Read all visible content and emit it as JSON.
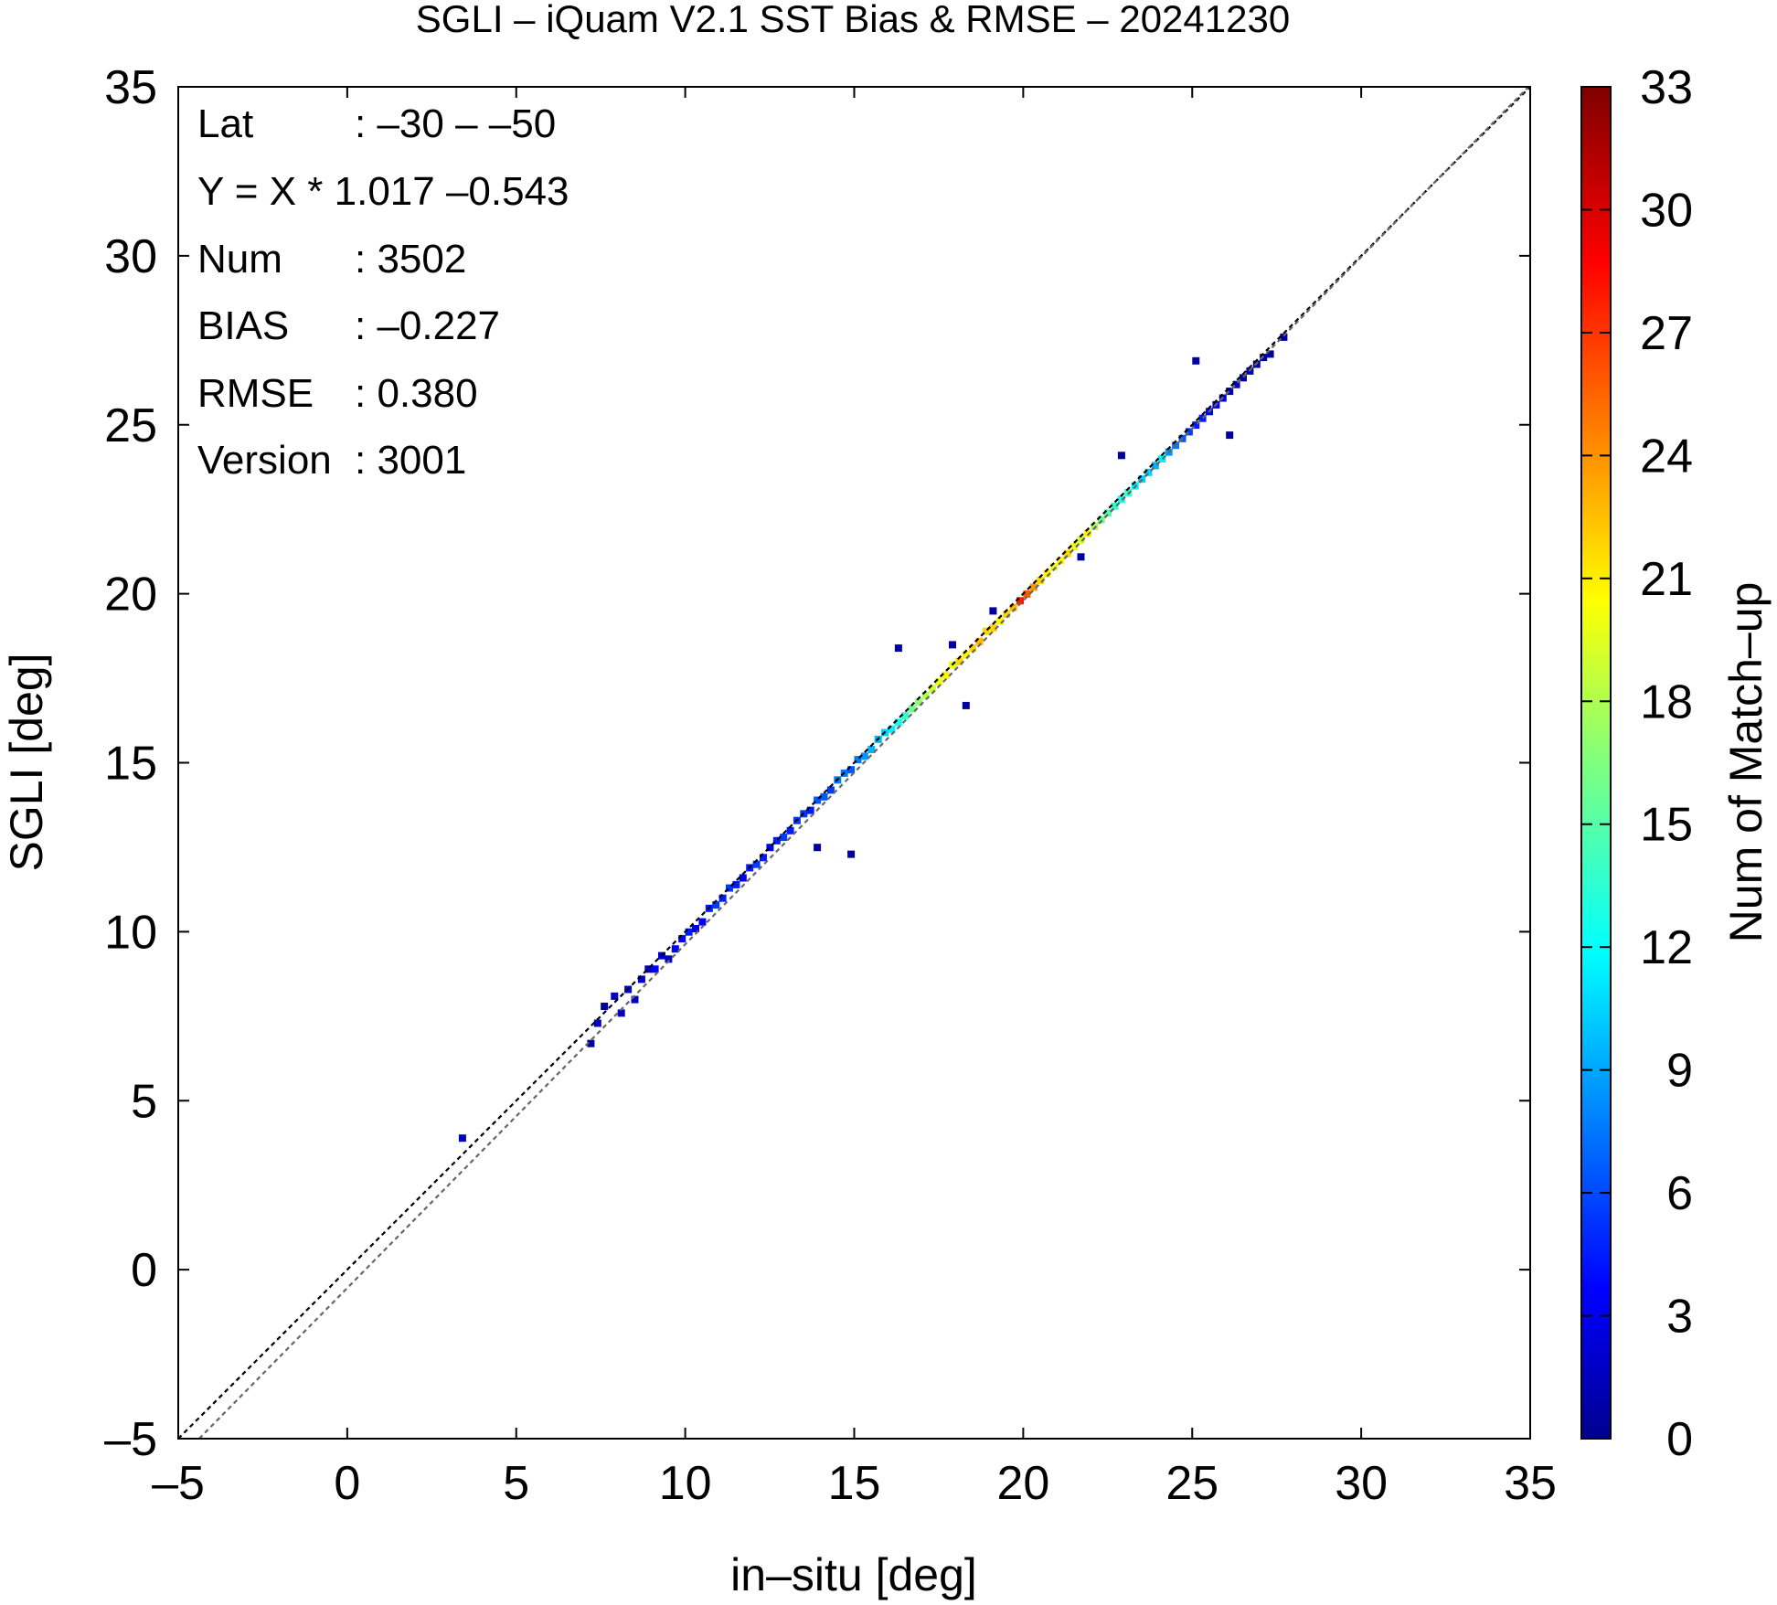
{
  "chart_data": {
    "type": "heatmap",
    "title": "SGLI – iQuam V2.1 SST Bias & RMSE  – 20241230",
    "xlabel": "in–situ [deg]",
    "ylabel": "SGLI [deg]",
    "xlim": [
      -5,
      35
    ],
    "ylim": [
      -5,
      35
    ],
    "x_ticks": [
      "–5",
      "0",
      "5",
      "10",
      "15",
      "20",
      "25",
      "30",
      "35"
    ],
    "y_ticks": [
      "–5",
      "0",
      "5",
      "10",
      "15",
      "20",
      "25",
      "30",
      "35"
    ],
    "colorbar": {
      "label": "Num of Match–up",
      "range": [
        0,
        33
      ],
      "ticks": [
        "0",
        "3",
        "6",
        "9",
        "12",
        "15",
        "18",
        "21",
        "24",
        "27",
        "30",
        "33"
      ]
    },
    "grid": false,
    "annotations": [
      {
        "key": "Lat",
        "value": ": –30 – –50"
      },
      {
        "key": "Y = X * 1.017 –0.543",
        "value": ""
      },
      {
        "key": "Num",
        "value": ": 3502"
      },
      {
        "key": "BIAS",
        "value": ": –0.227"
      },
      {
        "key": "RMSE",
        "value": ": 0.380"
      },
      {
        "key": "Version",
        "value": ": 3001"
      }
    ],
    "reference_lines": [
      {
        "name": "1:1",
        "slope": 1,
        "intercept": 0
      },
      {
        "name": "fit",
        "slope": 1.017,
        "intercept": -0.543
      }
    ],
    "bin_size": 0.2,
    "cells": [
      [
        3.4,
        3.9,
        2
      ],
      [
        7.2,
        6.7,
        1
      ],
      [
        7.4,
        7.3,
        2
      ],
      [
        7.6,
        7.8,
        1
      ],
      [
        7.9,
        8.1,
        2
      ],
      [
        8.1,
        7.6,
        2
      ],
      [
        8.3,
        8.3,
        3
      ],
      [
        8.5,
        8.0,
        2
      ],
      [
        8.7,
        8.6,
        3
      ],
      [
        8.9,
        8.9,
        2
      ],
      [
        9.1,
        8.9,
        4
      ],
      [
        9.3,
        9.3,
        3
      ],
      [
        9.5,
        9.2,
        2
      ],
      [
        9.7,
        9.5,
        4
      ],
      [
        9.9,
        9.8,
        4
      ],
      [
        10.1,
        10.0,
        5
      ],
      [
        10.3,
        10.1,
        3
      ],
      [
        10.5,
        10.3,
        4
      ],
      [
        10.7,
        10.7,
        5
      ],
      [
        10.9,
        10.8,
        6
      ],
      [
        11.1,
        11.0,
        5
      ],
      [
        11.3,
        11.3,
        6
      ],
      [
        11.5,
        11.4,
        5
      ],
      [
        11.7,
        11.6,
        4
      ],
      [
        11.9,
        11.9,
        5
      ],
      [
        12.1,
        12.0,
        6
      ],
      [
        12.3,
        12.2,
        5
      ],
      [
        12.5,
        12.5,
        4
      ],
      [
        12.7,
        12.7,
        5
      ],
      [
        12.9,
        12.8,
        6
      ],
      [
        13.1,
        13.0,
        5
      ],
      [
        13.3,
        13.3,
        6
      ],
      [
        13.5,
        13.5,
        6
      ],
      [
        13.7,
        13.6,
        5
      ],
      [
        13.9,
        13.9,
        7
      ],
      [
        14.1,
        14.0,
        7
      ],
      [
        14.3,
        14.2,
        6
      ],
      [
        14.5,
        14.5,
        8
      ],
      [
        14.7,
        14.7,
        8
      ],
      [
        14.9,
        14.8,
        7
      ],
      [
        15.1,
        15.1,
        8
      ],
      [
        15.3,
        15.2,
        9
      ],
      [
        15.5,
        15.4,
        10
      ],
      [
        15.7,
        15.7,
        10
      ],
      [
        15.9,
        15.9,
        11
      ],
      [
        16.1,
        16.0,
        12
      ],
      [
        16.3,
        16.2,
        13
      ],
      [
        16.5,
        16.4,
        14
      ],
      [
        16.7,
        16.6,
        16
      ],
      [
        16.9,
        16.8,
        17
      ],
      [
        17.1,
        17.0,
        18
      ],
      [
        17.3,
        17.2,
        19
      ],
      [
        17.5,
        17.4,
        20
      ],
      [
        17.7,
        17.6,
        21
      ],
      [
        17.9,
        17.9,
        20
      ],
      [
        18.1,
        18.0,
        22
      ],
      [
        18.3,
        18.2,
        21
      ],
      [
        18.5,
        18.4,
        22
      ],
      [
        18.7,
        18.6,
        23
      ],
      [
        18.9,
        18.9,
        22
      ],
      [
        19.1,
        19.0,
        22
      ],
      [
        19.3,
        19.2,
        21
      ],
      [
        19.5,
        19.4,
        22
      ],
      [
        19.7,
        19.6,
        23
      ],
      [
        19.9,
        19.8,
        28
      ],
      [
        20.1,
        20.0,
        26
      ],
      [
        20.3,
        20.2,
        24
      ],
      [
        20.5,
        20.4,
        22
      ],
      [
        20.7,
        20.6,
        21
      ],
      [
        20.9,
        20.8,
        20
      ],
      [
        21.1,
        21.0,
        21
      ],
      [
        21.3,
        21.2,
        22
      ],
      [
        21.5,
        21.4,
        20
      ],
      [
        21.7,
        21.6,
        19
      ],
      [
        21.9,
        21.8,
        21
      ],
      [
        22.1,
        22.0,
        18
      ],
      [
        22.3,
        22.2,
        16
      ],
      [
        22.5,
        22.4,
        15
      ],
      [
        22.7,
        22.6,
        14
      ],
      [
        22.9,
        22.8,
        13
      ],
      [
        23.1,
        23.0,
        14
      ],
      [
        23.3,
        23.2,
        12
      ],
      [
        23.5,
        23.4,
        11
      ],
      [
        23.7,
        23.6,
        11
      ],
      [
        23.9,
        23.8,
        10
      ],
      [
        24.1,
        24.0,
        12
      ],
      [
        24.3,
        24.2,
        9
      ],
      [
        24.5,
        24.4,
        8
      ],
      [
        24.7,
        24.6,
        7
      ],
      [
        24.9,
        24.8,
        6
      ],
      [
        25.1,
        25.0,
        5
      ],
      [
        25.3,
        25.2,
        5
      ],
      [
        25.5,
        25.4,
        4
      ],
      [
        25.7,
        25.6,
        3
      ],
      [
        25.9,
        25.8,
        3
      ],
      [
        26.1,
        26.0,
        2
      ],
      [
        26.3,
        26.2,
        2
      ],
      [
        26.5,
        26.4,
        1
      ],
      [
        26.7,
        26.6,
        2
      ],
      [
        26.9,
        26.8,
        1
      ],
      [
        27.1,
        27.0,
        1
      ],
      [
        27.3,
        27.1,
        1
      ],
      [
        27.7,
        27.6,
        1
      ],
      [
        14.9,
        12.3,
        1
      ],
      [
        13.9,
        12.5,
        1
      ],
      [
        17.9,
        18.5,
        1
      ],
      [
        18.3,
        16.7,
        1
      ],
      [
        16.3,
        18.4,
        1
      ],
      [
        19.1,
        19.5,
        1
      ],
      [
        21.7,
        21.1,
        1
      ],
      [
        22.9,
        24.1,
        1
      ],
      [
        25.1,
        26.9,
        1
      ],
      [
        26.1,
        24.7,
        1
      ]
    ]
  }
}
